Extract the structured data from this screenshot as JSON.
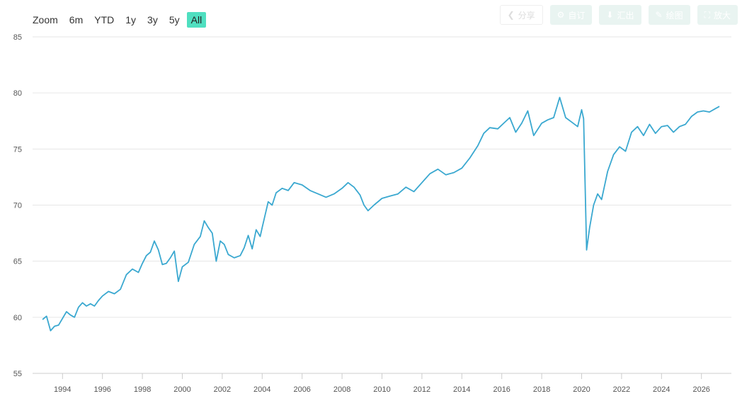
{
  "zoom": {
    "label": "Zoom",
    "buttons": [
      "6m",
      "YTD",
      "1y",
      "3y",
      "5y",
      "All"
    ],
    "active": "All"
  },
  "toolbar": {
    "buttons": [
      {
        "label": "分享",
        "icon": "share-icon"
      },
      {
        "label": "自订",
        "icon": "gear-icon"
      },
      {
        "label": "汇出",
        "icon": "download-icon"
      },
      {
        "label": "绘图",
        "icon": "pencil-icon"
      },
      {
        "label": "放大",
        "icon": "expand-icon"
      }
    ]
  },
  "colors": {
    "line": "#3aa8d0",
    "active_zoom": "#4fdfc0",
    "grid": "#e6e6e6"
  },
  "chart_data": {
    "type": "line",
    "ylim": [
      55,
      85
    ],
    "yticks": [
      55,
      60,
      65,
      70,
      75,
      80,
      85
    ],
    "xlim": [
      1992.5,
      2027.5
    ],
    "xticks": [
      "1994",
      "1996",
      "1998",
      "2000",
      "2002",
      "2004",
      "2006",
      "2008",
      "2010",
      "2012",
      "2014",
      "2016",
      "2018",
      "2020",
      "2022",
      "2024",
      "2026"
    ],
    "grid": true,
    "series": [
      {
        "x": [
          1993.0,
          1993.2,
          1993.4,
          1993.6,
          1993.8,
          1994.0,
          1994.2,
          1994.4,
          1994.6,
          1994.8,
          1995.0,
          1995.2,
          1995.4,
          1995.6,
          1995.8,
          1996.0,
          1996.3,
          1996.6,
          1996.9,
          1997.2,
          1997.5,
          1997.8,
          1998.0,
          1998.2,
          1998.4,
          1998.6,
          1998.8,
          1999.0,
          1999.2,
          1999.4,
          1999.6,
          1999.8,
          2000.0,
          2000.3,
          2000.6,
          2000.9,
          2001.1,
          2001.3,
          2001.5,
          2001.7,
          2001.9,
          2002.1,
          2002.3,
          2002.6,
          2002.9,
          2003.1,
          2003.3,
          2003.5,
          2003.7,
          2003.9,
          2004.0,
          2004.3,
          2004.5,
          2004.7,
          2005.0,
          2005.3,
          2005.6,
          2006.0,
          2006.4,
          2006.8,
          2007.2,
          2007.6,
          2008.0,
          2008.3,
          2008.6,
          2008.9,
          2009.1,
          2009.3,
          2009.6,
          2010.0,
          2010.4,
          2010.8,
          2011.2,
          2011.6,
          2012.0,
          2012.4,
          2012.8,
          2013.2,
          2013.6,
          2014.0,
          2014.4,
          2014.8,
          2015.1,
          2015.4,
          2015.8,
          2016.1,
          2016.4,
          2016.7,
          2017.0,
          2017.3,
          2017.6,
          2018.0,
          2018.3,
          2018.6,
          2018.9,
          2019.2,
          2019.5,
          2019.8,
          2020.0,
          2020.1,
          2020.25,
          2020.4,
          2020.6,
          2020.8,
          2021.0,
          2021.3,
          2021.6,
          2021.9,
          2022.2,
          2022.5,
          2022.8,
          2023.1,
          2023.4,
          2023.7,
          2024.0,
          2024.3,
          2024.6,
          2024.9,
          2025.2,
          2025.5,
          2025.8,
          2026.1,
          2026.4,
          2026.7,
          2026.9
        ],
        "values": [
          59.8,
          60.1,
          58.8,
          59.2,
          59.3,
          59.9,
          60.5,
          60.2,
          60.0,
          60.9,
          61.3,
          61.0,
          61.2,
          61.0,
          61.5,
          61.9,
          62.3,
          62.1,
          62.5,
          63.8,
          64.3,
          64.0,
          64.8,
          65.5,
          65.8,
          66.8,
          66.0,
          64.7,
          64.8,
          65.3,
          65.9,
          63.2,
          64.5,
          64.9,
          66.5,
          67.2,
          68.6,
          68.0,
          67.5,
          65.0,
          66.8,
          66.5,
          65.6,
          65.3,
          65.5,
          66.2,
          67.3,
          66.1,
          67.8,
          67.2,
          68.0,
          70.3,
          70.0,
          71.1,
          71.5,
          71.3,
          72.0,
          71.8,
          71.3,
          71.0,
          70.7,
          71.0,
          71.5,
          72.0,
          71.6,
          70.9,
          70.0,
          69.5,
          70.0,
          70.6,
          70.8,
          71.0,
          71.6,
          71.2,
          72.0,
          72.8,
          73.2,
          72.7,
          72.9,
          73.3,
          74.2,
          75.3,
          76.4,
          76.9,
          76.8,
          77.3,
          77.8,
          76.5,
          77.3,
          78.4,
          76.2,
          77.3,
          77.6,
          77.8,
          79.6,
          77.8,
          77.4,
          77.0,
          78.5,
          77.7,
          66.0,
          68.0,
          70.0,
          71.0,
          70.5,
          73.0,
          74.5,
          75.2,
          74.8,
          76.5,
          77.0,
          76.2,
          77.2,
          76.4,
          77.0,
          77.1,
          76.5,
          77.0,
          77.2,
          77.9,
          78.3,
          78.4,
          78.3,
          78.6,
          78.8
        ]
      }
    ]
  }
}
